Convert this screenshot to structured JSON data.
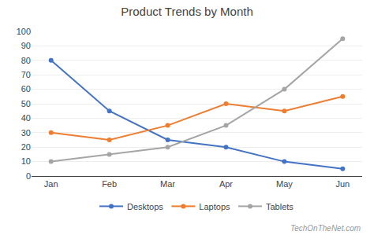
{
  "chart_data": {
    "type": "line",
    "title": "Product Trends by Month",
    "categories": [
      "Jan",
      "Feb",
      "Mar",
      "Apr",
      "May",
      "Jun"
    ],
    "series": [
      {
        "name": "Desktops",
        "color": "#4472C4",
        "marker": "circle",
        "values": [
          80,
          45,
          25,
          20,
          10,
          5
        ]
      },
      {
        "name": "Laptops",
        "color": "#ED7D31",
        "marker": "circle",
        "values": [
          30,
          25,
          35,
          50,
          45,
          55
        ]
      },
      {
        "name": "Tablets",
        "color": "#A5A5A5",
        "marker": "circle",
        "values": [
          10,
          15,
          20,
          35,
          60,
          95
        ]
      }
    ],
    "ylim": [
      0,
      100
    ],
    "yticks": [
      0,
      10,
      20,
      30,
      40,
      50,
      60,
      70,
      80,
      90,
      100
    ],
    "grid": true,
    "legend": "bottom",
    "annotations": [
      {
        "text": "TechOnTheNet.com",
        "color": "#999999"
      }
    ]
  }
}
